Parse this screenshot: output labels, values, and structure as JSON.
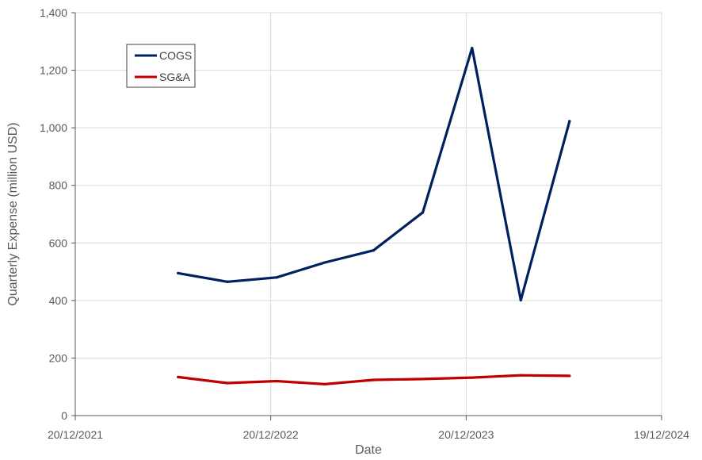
{
  "chart_data": {
    "type": "line",
    "xlabel": "Date",
    "ylabel": "Quarterly Expense (million USD)",
    "x_axis": {
      "type": "date",
      "range": [
        "2021-12-20",
        "2024-12-19"
      ],
      "ticks": [
        "2021-12-20",
        "2022-12-20",
        "2023-12-20",
        "2024-12-19"
      ],
      "tick_labels": [
        "20/12/2021",
        "20/12/2022",
        "20/12/2023",
        "19/12/2024"
      ]
    },
    "y_axis": {
      "range": [
        0,
        1400
      ],
      "ticks": [
        0,
        200,
        400,
        600,
        800,
        1000,
        1200,
        1400
      ],
      "tick_labels": [
        "0",
        "200",
        "400",
        "600",
        "800",
        "1,000",
        "1,200",
        "1,400"
      ]
    },
    "grid": true,
    "legend_position": "top-left",
    "series": [
      {
        "name": "COGS",
        "color": "#002060",
        "points": [
          {
            "x": "2022-06-30",
            "y": 495
          },
          {
            "x": "2022-09-30",
            "y": 465
          },
          {
            "x": "2022-12-31",
            "y": 480
          },
          {
            "x": "2023-03-31",
            "y": 532
          },
          {
            "x": "2023-06-30",
            "y": 574
          },
          {
            "x": "2023-09-30",
            "y": 706
          },
          {
            "x": "2023-12-31",
            "y": 1277
          },
          {
            "x": "2024-03-31",
            "y": 401
          },
          {
            "x": "2024-06-30",
            "y": 1023
          }
        ]
      },
      {
        "name": "SG&A",
        "color": "#C00000",
        "points": [
          {
            "x": "2022-06-30",
            "y": 134
          },
          {
            "x": "2022-09-30",
            "y": 113
          },
          {
            "x": "2022-12-31",
            "y": 120
          },
          {
            "x": "2023-03-31",
            "y": 109
          },
          {
            "x": "2023-06-30",
            "y": 124
          },
          {
            "x": "2023-09-30",
            "y": 127
          },
          {
            "x": "2023-12-31",
            "y": 132
          },
          {
            "x": "2024-03-31",
            "y": 140
          },
          {
            "x": "2024-06-30",
            "y": 138
          }
        ]
      }
    ]
  }
}
